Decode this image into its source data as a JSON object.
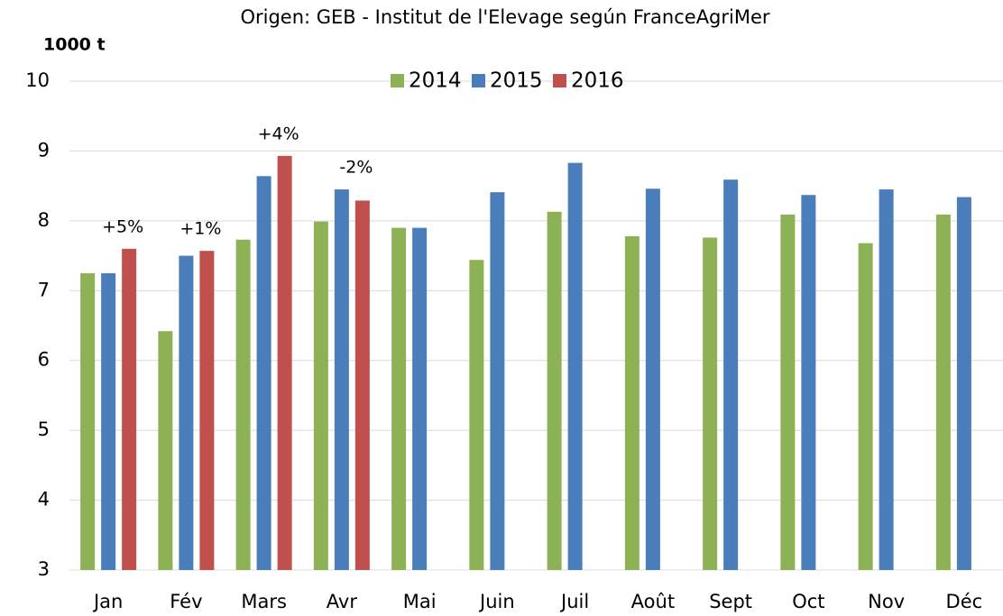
{
  "chart_data": {
    "type": "bar",
    "subtitle": "Origen: GEB - Institut de l'Elevage según FranceAgriMer",
    "y_axis_label": "1000 t",
    "categories": [
      "Jan",
      "Fév",
      "Mars",
      "Avr",
      "Mai",
      "Juin",
      "Juil",
      "Août",
      "Sept",
      "Oct",
      "Nov",
      "Déc"
    ],
    "series": [
      {
        "name": "2014",
        "color": "#8db255",
        "values": [
          7.25,
          6.42,
          7.73,
          7.99,
          7.9,
          7.44,
          8.13,
          7.78,
          7.76,
          8.09,
          7.68,
          8.09
        ]
      },
      {
        "name": "2015",
        "color": "#4a7ebb",
        "values": [
          7.25,
          7.5,
          8.64,
          8.45,
          7.9,
          8.41,
          8.83,
          8.46,
          8.59,
          8.37,
          8.45,
          8.34
        ]
      },
      {
        "name": "2016",
        "color": "#c0504d",
        "values": [
          7.6,
          7.57,
          8.93,
          8.29,
          null,
          null,
          null,
          null,
          null,
          null,
          null,
          null
        ]
      }
    ],
    "annotations": [
      {
        "text": "+5%",
        "x": "Jan"
      },
      {
        "text": "+1%",
        "x": "Fév"
      },
      {
        "text": "+4%",
        "x": "Mars"
      },
      {
        "text": "-2%",
        "x": "Avr"
      }
    ],
    "ylim": [
      3,
      10
    ],
    "yticks": [
      3,
      4,
      5,
      6,
      7,
      8,
      9,
      10
    ],
    "grid": true,
    "legend": "top"
  }
}
